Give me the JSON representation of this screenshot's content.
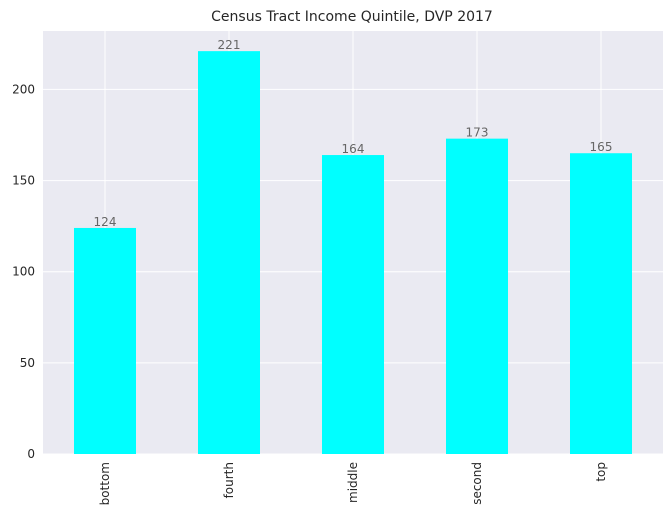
{
  "chart_data": {
    "type": "bar",
    "title": "Census Tract Income Quintile, DVP 2017",
    "xlabel": "",
    "ylabel": "",
    "categories": [
      "bottom",
      "fourth",
      "middle",
      "second",
      "top"
    ],
    "values": [
      124,
      221,
      164,
      173,
      165
    ],
    "ylim": [
      0,
      232.05
    ],
    "yticks": [
      0,
      50,
      100,
      150,
      200
    ],
    "grid": true,
    "legend": "none",
    "bar_color": "#00ffff",
    "background_color": "#eaeaf2",
    "grid_color": "#ffffff",
    "x_tick_rotation": 90
  }
}
